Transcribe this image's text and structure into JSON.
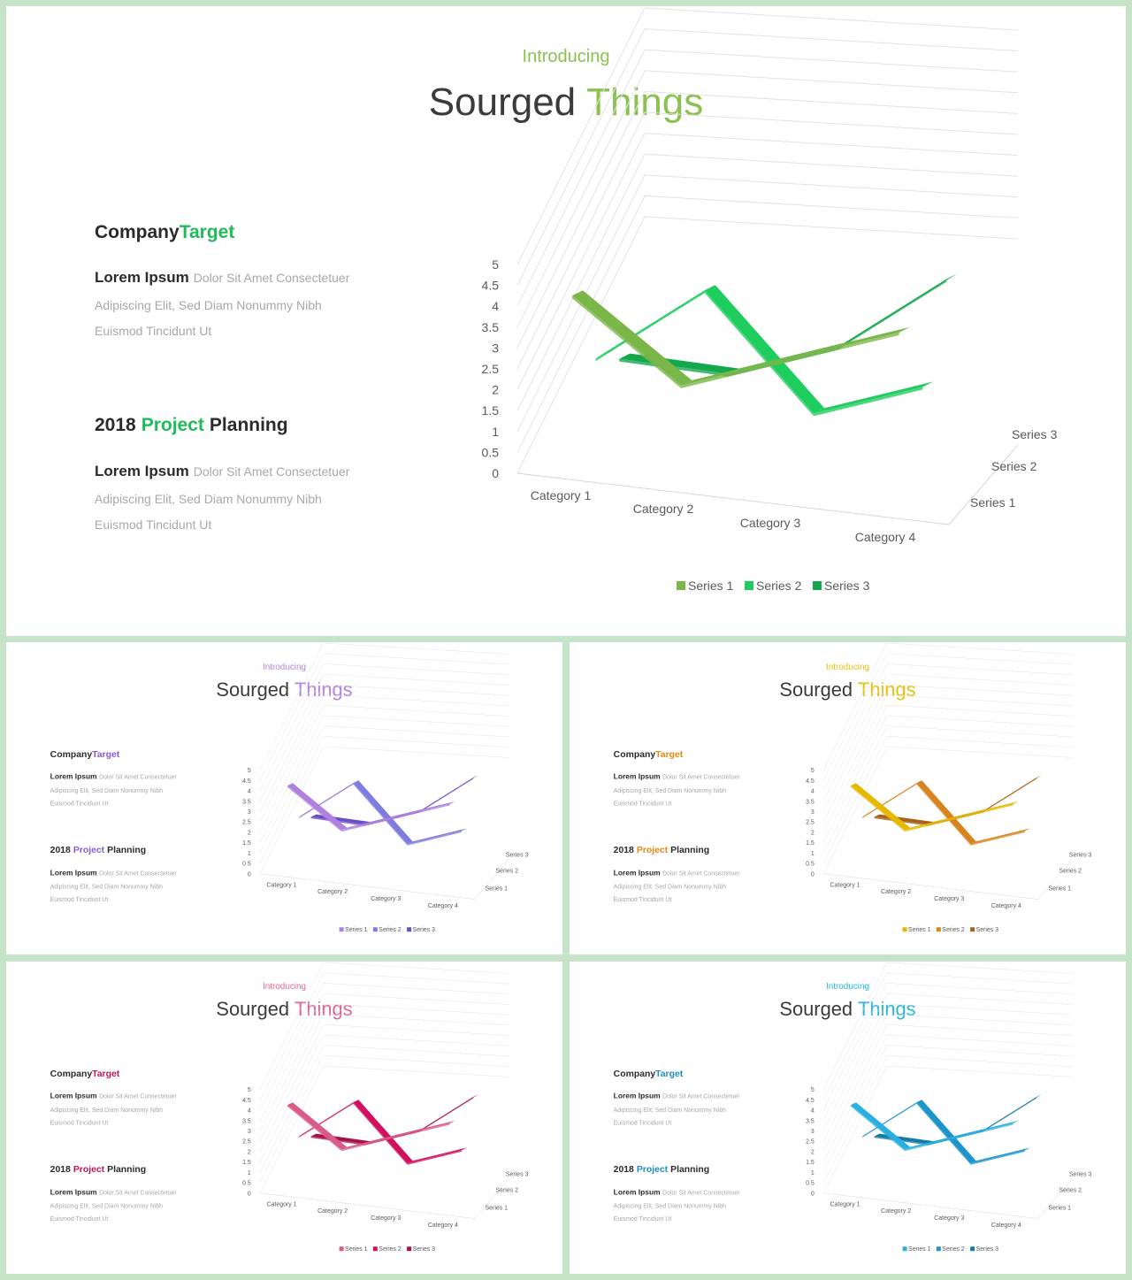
{
  "slides": [
    {
      "intro": "Introducing",
      "title_dark": "Sourged",
      "title_accent": "Things",
      "accent": "#8cc152",
      "secondary": "#1fbb58",
      "s1_title_dark": "Company",
      "s1_title_accent": "Target",
      "s2_title_pre": "2018",
      "s2_title_accent": "Project",
      "s2_title_post": "Planning",
      "body_bold": "Lorem Ipsum",
      "body_line1": "Dolor Sit Amet Consectetuer",
      "body_line2": "Adipiscing Elit, Sed Diam Nonummy  Nibh",
      "body_line3": "Euismod Tincidunt Ut",
      "series_colors": [
        "#7ab648",
        "#1fcc5e",
        "#13a84c"
      ],
      "legend": [
        "Series 1",
        "Series 2",
        "Series 3"
      ]
    },
    {
      "intro": "Introducing",
      "title_dark": "Sourged",
      "title_accent": "Things",
      "accent": "#b583e0",
      "secondary": "#8a5bd6",
      "s1_title_dark": "Company",
      "s1_title_accent": "Target",
      "s2_title_pre": "2018",
      "s2_title_accent": "Project",
      "s2_title_post": "Planning",
      "body_bold": "Lorem Ipsum",
      "body_line1": "Dolor Sit Amet Consectetuer",
      "body_line2": "Adipiscing Elit, Sed Diam Nonummy  Nibh",
      "body_line3": "Euismod Tincidunt Ut",
      "series_colors": [
        "#b07fe0",
        "#7f7ce0",
        "#6a4fc4"
      ],
      "legend": [
        "Series 1",
        "Series 2",
        "Series 3"
      ]
    },
    {
      "intro": "Introducing",
      "title_dark": "Sourged",
      "title_accent": "Things",
      "accent": "#e8c010",
      "secondary": "#e08a10",
      "s1_title_dark": "Company",
      "s1_title_accent": "Target",
      "s2_title_pre": "2018",
      "s2_title_accent": "Project",
      "s2_title_post": "Planning",
      "body_bold": "Lorem Ipsum",
      "body_line1": "Dolor Sit Amet Consectetuer",
      "body_line2": "Adipiscing Elit, Sed Diam Nonummy  Nibh",
      "body_line3": "Euismod Tincidunt Ut",
      "series_colors": [
        "#e6b800",
        "#d9831f",
        "#a8601a"
      ],
      "legend": [
        "Series 1",
        "Series 2",
        "Series 3"
      ]
    },
    {
      "intro": "Introducing",
      "title_dark": "Sourged",
      "title_accent": "Things",
      "accent": "#e06890",
      "secondary": "#c0185a",
      "s1_title_dark": "Company",
      "s1_title_accent": "Target",
      "s2_title_pre": "2018",
      "s2_title_accent": "Project",
      "s2_title_post": "Planning",
      "body_bold": "Lorem Ipsum",
      "body_line1": "Dolor Sit Amet Consectetuer",
      "body_line2": "Adipiscing Elit, Sed Diam Nonummy  Nibh",
      "body_line3": "Euismod Tincidunt Ut",
      "series_colors": [
        "#d95b87",
        "#d1105f",
        "#a8104a"
      ],
      "legend": [
        "Series 1",
        "Series 2",
        "Series 3"
      ]
    },
    {
      "intro": "Introducing",
      "title_dark": "Sourged",
      "title_accent": "Things",
      "accent": "#2bb5e0",
      "secondary": "#1a8fc0",
      "s1_title_dark": "Company",
      "s1_title_accent": "Target",
      "s2_title_pre": "2018",
      "s2_title_accent": "Project",
      "s2_title_post": "Planning",
      "body_bold": "Lorem Ipsum",
      "body_line1": "Dolor Sit Amet Consectetuer",
      "body_line2": "Adipiscing Elit, Sed Diam Nonummy  Nibh",
      "body_line3": "Euismod Tincidunt Ut",
      "series_colors": [
        "#29b0e0",
        "#1d94cc",
        "#137aa8"
      ],
      "legend": [
        "Series 1",
        "Series 2",
        "Series 3"
      ]
    }
  ],
  "chart_data": {
    "type": "line",
    "style": "3d-line",
    "categories": [
      "Category 1",
      "Category 2",
      "Category 3",
      "Category 4"
    ],
    "depth_labels": [
      "Series 1",
      "Series 2",
      "Series 3"
    ],
    "series": [
      {
        "name": "Series 1",
        "values": [
          4.3,
          2.5,
          3.5,
          4.5
        ]
      },
      {
        "name": "Series 2",
        "values": [
          2.4,
          4.4,
          1.8,
          2.8
        ]
      },
      {
        "name": "Series 3",
        "values": [
          2.0,
          2.0,
          3.0,
          5.0
        ]
      }
    ],
    "yticks": [
      "0",
      "0.5",
      "1",
      "1.5",
      "2",
      "2.5",
      "3",
      "3.5",
      "4",
      "4.5",
      "5"
    ],
    "ylim": [
      0,
      5
    ],
    "grid": true,
    "legend_position": "bottom"
  }
}
